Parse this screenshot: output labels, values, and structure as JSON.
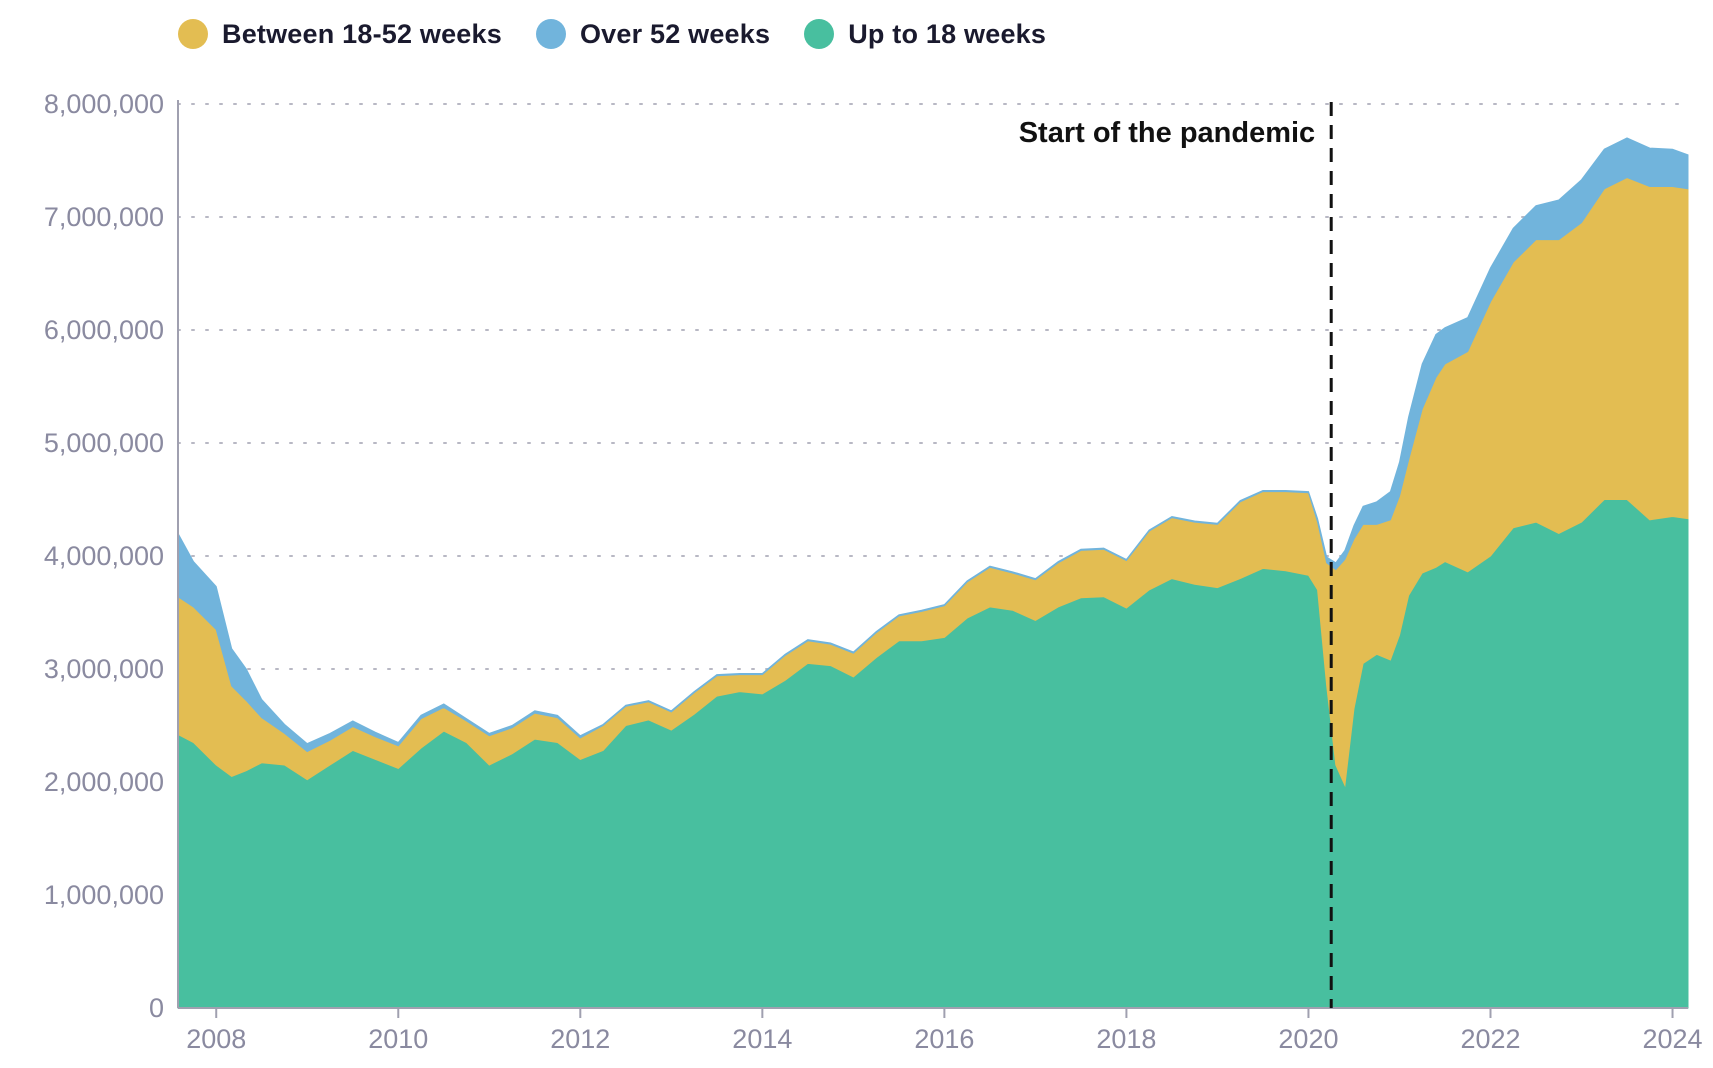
{
  "chart_data": {
    "type": "area",
    "stacked": true,
    "title": "",
    "xlabel": "",
    "ylabel": "",
    "xlim": [
      2007.58,
      2024.17
    ],
    "ylim": [
      0,
      8000000
    ],
    "grid": "horizontal-dotted",
    "legend": {
      "placement": "top-left",
      "entries": [
        {
          "label": "Between 18-52 weeks",
          "color": "#e3bd52"
        },
        {
          "label": "Over 52 weeks",
          "color": "#71b4dc"
        },
        {
          "label": "Up to 18 weeks",
          "color": "#48bf9f"
        }
      ]
    },
    "x_ticks": [
      {
        "value": 2008,
        "label": "2008"
      },
      {
        "value": 2010,
        "label": "2010"
      },
      {
        "value": 2012,
        "label": "2012"
      },
      {
        "value": 2014,
        "label": "2014"
      },
      {
        "value": 2016,
        "label": "2016"
      },
      {
        "value": 2018,
        "label": "2018"
      },
      {
        "value": 2020,
        "label": "2020"
      },
      {
        "value": 2022,
        "label": "2022"
      },
      {
        "value": 2024,
        "label": "2024"
      }
    ],
    "y_ticks": [
      {
        "value": 0,
        "label": "0"
      },
      {
        "value": 1000000,
        "label": "1,000,000"
      },
      {
        "value": 2000000,
        "label": "2,000,000"
      },
      {
        "value": 3000000,
        "label": "3,000,000"
      },
      {
        "value": 4000000,
        "label": "4,000,000"
      },
      {
        "value": 5000000,
        "label": "5,000,000"
      },
      {
        "value": 6000000,
        "label": "6,000,000"
      },
      {
        "value": 7000000,
        "label": "7,000,000"
      },
      {
        "value": 8000000,
        "label": "8,000,000"
      }
    ],
    "annotations": [
      {
        "x": 2020.25,
        "label": "Start of the pandemic",
        "style": "dashed-vertical-line"
      }
    ],
    "x": [
      2007.58,
      2007.75,
      2008.0,
      2008.17,
      2008.33,
      2008.5,
      2008.75,
      2009.0,
      2009.25,
      2009.5,
      2009.75,
      2010.0,
      2010.25,
      2010.5,
      2010.75,
      2011.0,
      2011.25,
      2011.5,
      2011.75,
      2012.0,
      2012.25,
      2012.5,
      2012.75,
      2013.0,
      2013.25,
      2013.5,
      2013.75,
      2014.0,
      2014.25,
      2014.5,
      2014.75,
      2015.0,
      2015.25,
      2015.5,
      2015.75,
      2016.0,
      2016.25,
      2016.5,
      2016.75,
      2017.0,
      2017.25,
      2017.5,
      2017.75,
      2018.0,
      2018.25,
      2018.5,
      2018.75,
      2019.0,
      2019.25,
      2019.5,
      2019.75,
      2020.0,
      2020.1,
      2020.2,
      2020.3,
      2020.4,
      2020.5,
      2020.6,
      2020.75,
      2020.9,
      2021.0,
      2021.1,
      2021.25,
      2021.4,
      2021.5,
      2021.75,
      2022.0,
      2022.25,
      2022.5,
      2022.75,
      2023.0,
      2023.25,
      2023.5,
      2023.75,
      2024.0,
      2024.17
    ],
    "series": [
      {
        "name": "Up to 18 weeks",
        "color": "#48bf9f",
        "values": [
          2420000,
          2350000,
          2150000,
          2050000,
          2100000,
          2170000,
          2150000,
          2020000,
          2150000,
          2280000,
          2200000,
          2120000,
          2300000,
          2450000,
          2350000,
          2150000,
          2250000,
          2380000,
          2350000,
          2200000,
          2280000,
          2500000,
          2550000,
          2460000,
          2600000,
          2760000,
          2800000,
          2780000,
          2900000,
          3050000,
          3030000,
          2930000,
          3100000,
          3250000,
          3250000,
          3280000,
          3450000,
          3550000,
          3520000,
          3430000,
          3550000,
          3630000,
          3640000,
          3540000,
          3700000,
          3800000,
          3750000,
          3720000,
          3800000,
          3890000,
          3870000,
          3830000,
          3700000,
          2850000,
          2150000,
          1970000,
          2650000,
          3050000,
          3130000,
          3080000,
          3300000,
          3650000,
          3850000,
          3900000,
          3950000,
          3860000,
          4000000,
          4250000,
          4300000,
          4200000,
          4300000,
          4500000,
          4500000,
          4320000,
          4350000,
          4330000
        ]
      },
      {
        "name": "Between 18-52 weeks",
        "color": "#e3bd52",
        "values": [
          1220000,
          1200000,
          1200000,
          800000,
          620000,
          400000,
          280000,
          250000,
          220000,
          210000,
          200000,
          200000,
          260000,
          210000,
          190000,
          260000,
          230000,
          230000,
          220000,
          190000,
          220000,
          170000,
          160000,
          160000,
          190000,
          180000,
          150000,
          170000,
          220000,
          200000,
          190000,
          210000,
          220000,
          220000,
          260000,
          280000,
          320000,
          350000,
          330000,
          360000,
          390000,
          420000,
          420000,
          420000,
          520000,
          540000,
          550000,
          560000,
          680000,
          680000,
          700000,
          730000,
          600000,
          1090000,
          1730000,
          2000000,
          1500000,
          1230000,
          1150000,
          1240000,
          1230000,
          1200000,
          1450000,
          1680000,
          1750000,
          1950000,
          2250000,
          2350000,
          2500000,
          2600000,
          2650000,
          2750000,
          2850000,
          2950000,
          2920000,
          2920000
        ]
      },
      {
        "name": "Over 52 weeks",
        "color": "#71b4dc",
        "values": [
          560000,
          400000,
          380000,
          330000,
          280000,
          160000,
          80000,
          70000,
          60000,
          50000,
          40000,
          30000,
          30000,
          30000,
          20000,
          20000,
          20000,
          20000,
          20000,
          20000,
          10000,
          10000,
          10000,
          10000,
          10000,
          10000,
          10000,
          10000,
          10000,
          10000,
          10000,
          10000,
          10000,
          10000,
          10000,
          10000,
          10000,
          10000,
          10000,
          10000,
          10000,
          10000,
          10000,
          10000,
          10000,
          10000,
          10000,
          10000,
          10000,
          10000,
          10000,
          10000,
          30000,
          50000,
          60000,
          80000,
          120000,
          160000,
          200000,
          250000,
          300000,
          380000,
          400000,
          380000,
          320000,
          300000,
          300000,
          300000,
          300000,
          350000,
          380000,
          350000,
          350000,
          340000,
          330000,
          300000
        ]
      }
    ]
  }
}
